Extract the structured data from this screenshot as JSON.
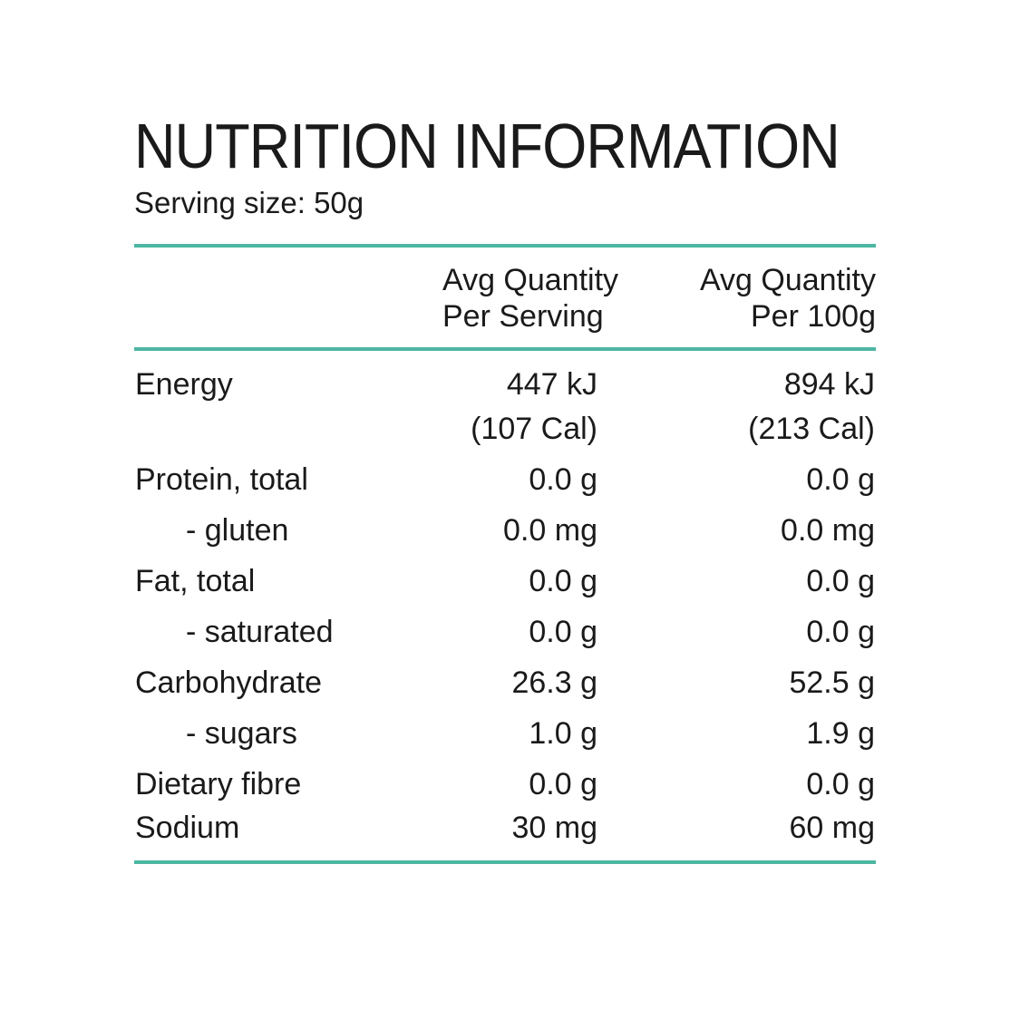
{
  "label": {
    "title": "NUTRITION INFORMATION",
    "serving_size": "Serving size: 50g",
    "colors": {
      "rule": "#4cb7a2",
      "text": "#1a1a1a",
      "background": "#ffffff"
    },
    "table": {
      "headers": {
        "per_serving": {
          "line1": "Avg Quantity",
          "line2": "Per Serving"
        },
        "per_100g": {
          "line1": "Avg Quantity",
          "line2": "Per 100g"
        }
      },
      "rows": [
        {
          "label": "Energy",
          "per_serving": "447 kJ",
          "per_100g": "894 kJ"
        },
        {
          "label": "",
          "per_serving": "(107 Cal)",
          "per_100g": "(213 Cal)"
        },
        {
          "label": "Protein, total",
          "per_serving": "0.0 g",
          "per_100g": "0.0 g"
        },
        {
          "label": "- gluten",
          "per_serving": "0.0 mg",
          "per_100g": "0.0 mg"
        },
        {
          "label": "Fat, total",
          "per_serving": "0.0 g",
          "per_100g": "0.0 g"
        },
        {
          "label": "- saturated",
          "per_serving": "0.0 g",
          "per_100g": "0.0 g"
        },
        {
          "label": "Carbohydrate",
          "per_serving": "26.3 g",
          "per_100g": "52.5 g"
        },
        {
          "label": "- sugars",
          "per_serving": "1.0 g",
          "per_100g": "1.9 g"
        },
        {
          "label": "Dietary fibre",
          "per_serving": "0.0 g",
          "per_100g": "0.0 g"
        },
        {
          "label": "Sodium",
          "per_serving": "30 mg",
          "per_100g": "60 mg"
        }
      ]
    }
  }
}
